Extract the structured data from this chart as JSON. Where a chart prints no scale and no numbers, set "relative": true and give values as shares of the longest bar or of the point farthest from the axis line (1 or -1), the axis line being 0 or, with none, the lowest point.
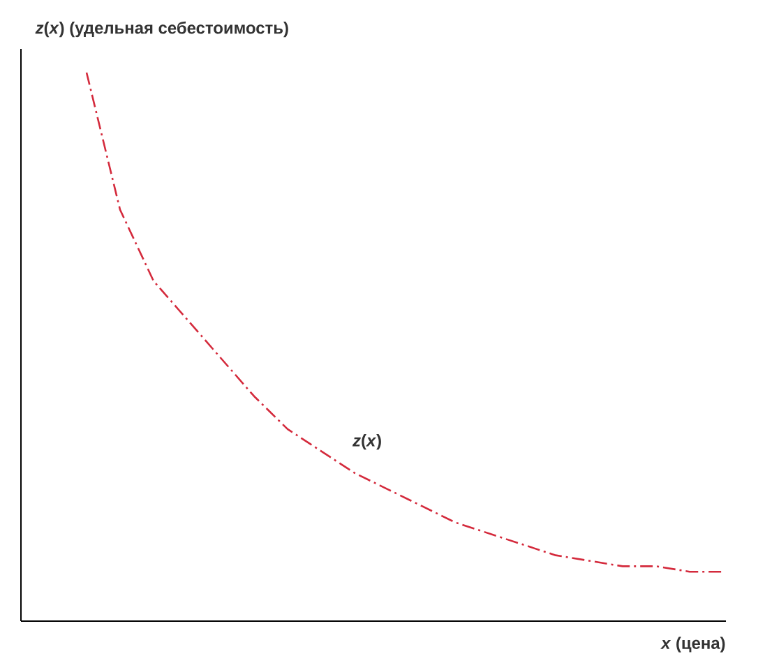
{
  "chart_data": {
    "type": "line",
    "relative": true,
    "ylabel": "*z*(*x*) (удельная себестоимость)",
    "xlabel": "*x* (цена)",
    "categories": [
      null,
      null,
      null,
      null,
      null,
      null,
      null,
      null,
      null,
      null,
      null,
      null,
      null,
      null,
      null,
      null,
      null,
      null,
      null,
      null
    ],
    "series": [
      {
        "name": "*z*(*x*)",
        "color": "#d42a3c",
        "values": [
          1.0,
          0.75,
          0.62,
          0.55,
          0.48,
          0.41,
          0.35,
          0.31,
          0.27,
          0.24,
          0.21,
          0.18,
          0.16,
          0.14,
          0.12,
          0.11,
          0.1,
          0.1,
          0.09,
          0.09
        ]
      }
    ],
    "line_style": "dashed",
    "marker": "none"
  }
}
